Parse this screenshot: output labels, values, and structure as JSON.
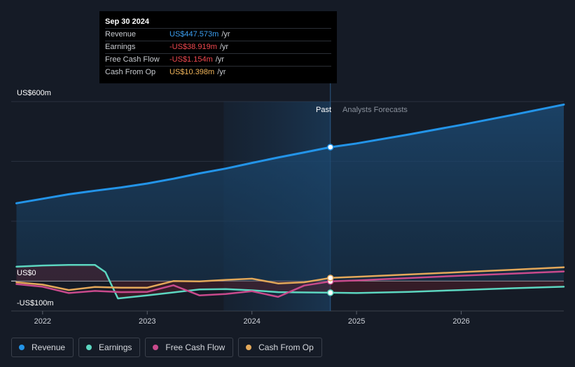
{
  "tooltip": {
    "date": "Sep 30 2024",
    "rows": [
      {
        "label": "Revenue",
        "value": "US$447.573m",
        "unit": "/yr",
        "color": "#3b9ef0"
      },
      {
        "label": "Earnings",
        "value": "-US$38.919m",
        "unit": "/yr",
        "color": "#f0484f"
      },
      {
        "label": "Free Cash Flow",
        "value": "-US$1.154m",
        "unit": "/yr",
        "color": "#f0484f"
      },
      {
        "label": "Cash From Op",
        "value": "US$10.398m",
        "unit": "/yr",
        "color": "#f0b45a"
      }
    ]
  },
  "labels": {
    "past": "Past",
    "forecast": "Analysts Forecasts"
  },
  "legend": [
    {
      "label": "Revenue",
      "color": "#2394e8"
    },
    {
      "label": "Earnings",
      "color": "#5cd6c0"
    },
    {
      "label": "Free Cash Flow",
      "color": "#c84a8c"
    },
    {
      "label": "Cash From Op",
      "color": "#e3a85a"
    }
  ],
  "chart_data": {
    "type": "line",
    "ylabel_top": "US$600m",
    "ylabel_zero": "US$0",
    "ylabel_bottom": "-US$100m",
    "ylim": [
      -100,
      600
    ],
    "xlim": [
      2021.7,
      2026.98
    ],
    "x_ticks": [
      2022,
      2023,
      2024,
      2025,
      2026
    ],
    "x_tick_labels": [
      "2022",
      "2023",
      "2024",
      "2025",
      "2026"
    ],
    "past_end": 2024.75,
    "highlight_start": 2023.73,
    "series": [
      {
        "name": "Revenue",
        "color": "#2394e8",
        "points": [
          [
            2021.75,
            260
          ],
          [
            2022.0,
            275
          ],
          [
            2022.25,
            290
          ],
          [
            2022.5,
            302
          ],
          [
            2022.75,
            313
          ],
          [
            2023.0,
            326
          ],
          [
            2023.25,
            342
          ],
          [
            2023.5,
            360
          ],
          [
            2023.75,
            376
          ],
          [
            2024.0,
            395
          ],
          [
            2024.25,
            413
          ],
          [
            2024.5,
            430
          ],
          [
            2024.75,
            447.6
          ],
          [
            2025.0,
            460
          ],
          [
            2025.5,
            490
          ],
          [
            2026.0,
            522
          ],
          [
            2026.5,
            556
          ],
          [
            2026.98,
            590
          ]
        ]
      },
      {
        "name": "Earnings",
        "color": "#5cd6c0",
        "points": [
          [
            2021.75,
            48
          ],
          [
            2022.0,
            52
          ],
          [
            2022.25,
            54
          ],
          [
            2022.5,
            54
          ],
          [
            2022.6,
            30
          ],
          [
            2022.72,
            -58
          ],
          [
            2023.0,
            -48
          ],
          [
            2023.25,
            -38
          ],
          [
            2023.5,
            -28
          ],
          [
            2023.75,
            -27
          ],
          [
            2024.0,
            -31
          ],
          [
            2024.25,
            -37
          ],
          [
            2024.5,
            -38
          ],
          [
            2024.75,
            -38.9
          ],
          [
            2025.0,
            -40
          ],
          [
            2025.5,
            -36
          ],
          [
            2026.0,
            -30
          ],
          [
            2026.5,
            -24
          ],
          [
            2026.98,
            -19
          ]
        ]
      },
      {
        "name": "Free Cash Flow",
        "color": "#c84a8c",
        "points": [
          [
            2021.75,
            -10
          ],
          [
            2022.0,
            -19
          ],
          [
            2022.25,
            -40
          ],
          [
            2022.5,
            -33
          ],
          [
            2022.75,
            -37
          ],
          [
            2023.0,
            -36
          ],
          [
            2023.25,
            -14
          ],
          [
            2023.5,
            -48
          ],
          [
            2023.75,
            -43
          ],
          [
            2024.0,
            -34
          ],
          [
            2024.25,
            -53
          ],
          [
            2024.5,
            -15
          ],
          [
            2024.75,
            -1.2
          ],
          [
            2025.0,
            2
          ],
          [
            2025.5,
            10
          ],
          [
            2026.0,
            18
          ],
          [
            2026.5,
            25
          ],
          [
            2026.98,
            32
          ]
        ]
      },
      {
        "name": "Cash From Op",
        "color": "#e3a85a",
        "points": [
          [
            2021.75,
            -4
          ],
          [
            2022.0,
            -12
          ],
          [
            2022.25,
            -30
          ],
          [
            2022.5,
            -20
          ],
          [
            2022.75,
            -22
          ],
          [
            2023.0,
            -22
          ],
          [
            2023.25,
            0
          ],
          [
            2023.5,
            -1
          ],
          [
            2023.75,
            4
          ],
          [
            2024.0,
            8
          ],
          [
            2024.25,
            -8
          ],
          [
            2024.5,
            -4
          ],
          [
            2024.75,
            10.4
          ],
          [
            2025.0,
            14
          ],
          [
            2025.5,
            22
          ],
          [
            2026.0,
            30
          ],
          [
            2026.5,
            38
          ],
          [
            2026.98,
            46
          ]
        ]
      }
    ]
  }
}
